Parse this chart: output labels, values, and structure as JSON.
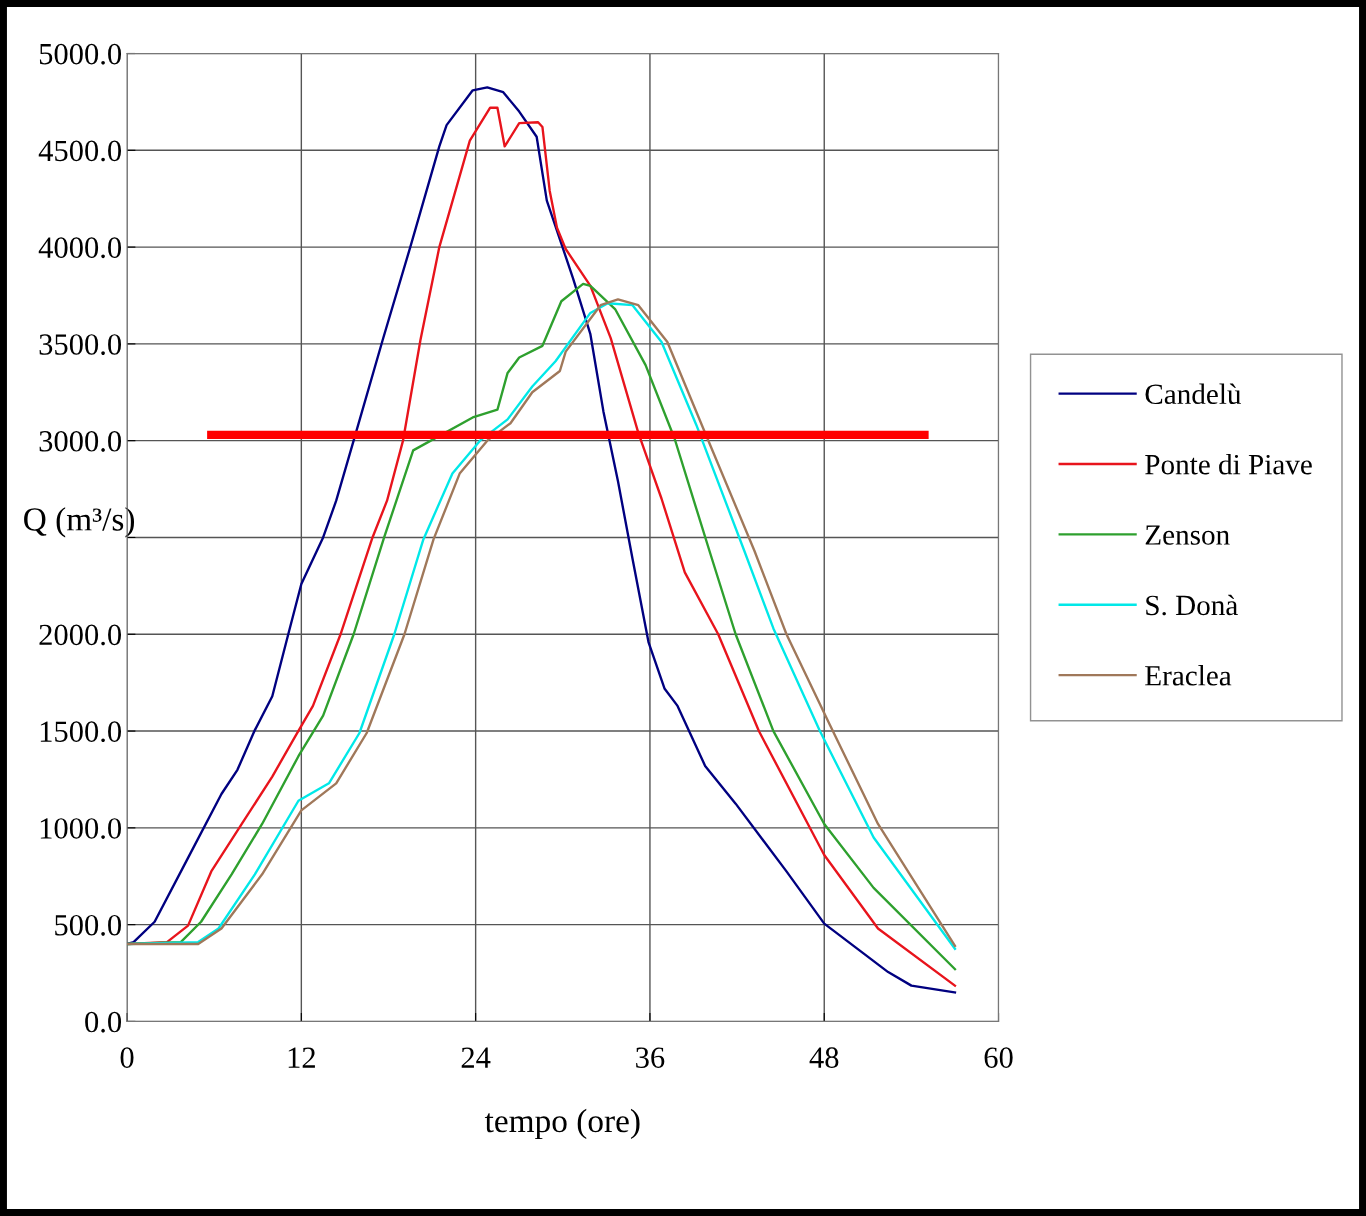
{
  "chart_data": {
    "type": "line",
    "xlabel": "tempo (ore)",
    "ylabel": "Q (m³/s)",
    "xlim": [
      0,
      60
    ],
    "xticks": [
      0,
      12,
      24,
      36,
      48,
      60
    ],
    "ylim": [
      0,
      5000
    ],
    "yticks": [
      {
        "value": 0,
        "label": "0.0"
      },
      {
        "value": 500,
        "label": "500.0"
      },
      {
        "value": 1000,
        "label": "1000.0"
      },
      {
        "value": 1500,
        "label": "1500.0"
      },
      {
        "value": 2000,
        "label": "2000.0"
      },
      {
        "value": 2500,
        "label": null
      },
      {
        "value": 3000,
        "label": "3000.0"
      },
      {
        "value": 3500,
        "label": "3500.0"
      },
      {
        "value": 4000,
        "label": "4000.0"
      },
      {
        "value": 4500,
        "label": "4500.0"
      },
      {
        "value": 5000,
        "label": "5000.0"
      }
    ],
    "grid": true,
    "legend": "right",
    "marker": "none",
    "line_style": "solid",
    "series": [
      {
        "name": "Candelù",
        "color": "#000080",
        "x": [
          0,
          0.45,
          1.9,
          4.2,
          6.5,
          7.6,
          8.8,
          10,
          11.1,
          12,
          13.5,
          14.4,
          15.6,
          17.6,
          19.5,
          21.5,
          22,
          23.8,
          24.8,
          25.9,
          27,
          28.2,
          28.9,
          30.7,
          31.9,
          32.8,
          33.8,
          34.8,
          35.9,
          37,
          37.9,
          39.8,
          41.9,
          45.4,
          48,
          52.4,
          54,
          57
        ],
        "values": [
          400,
          410,
          515,
          845,
          1175,
          1300,
          1505,
          1680,
          2000,
          2260,
          2500,
          2690,
          3000,
          3520,
          4000,
          4520,
          4630,
          4810,
          4825,
          4800,
          4700,
          4570,
          4240,
          3840,
          3550,
          3150,
          2790,
          2390,
          1960,
          1720,
          1630,
          1320,
          1125,
          775,
          505,
          255,
          185,
          150
        ]
      },
      {
        "name": "Ponte di Piave",
        "color": "#e8141c",
        "x": [
          0,
          2.75,
          4.2,
          5.8,
          7.9,
          10,
          11.6,
          12.8,
          14.7,
          16.9,
          17.9,
          19,
          20.2,
          21.5,
          23.6,
          25,
          25.5,
          26,
          27,
          28.3,
          28.6,
          29.1,
          29.6,
          30.2,
          31.9,
          33.3,
          35.2,
          36.8,
          38.4,
          40.7,
          43.5,
          48,
          51.7,
          57
        ],
        "values": [
          400,
          410,
          495,
          775,
          1020,
          1265,
          1475,
          1630,
          2000,
          2500,
          2690,
          3000,
          3520,
          4000,
          4550,
          4720,
          4720,
          4520,
          4640,
          4645,
          4620,
          4290,
          4100,
          3990,
          3800,
          3530,
          3040,
          2700,
          2320,
          2000,
          1500,
          860,
          480,
          185
        ]
      },
      {
        "name": "Zenson",
        "color": "#2ea02e",
        "x": [
          0,
          3.7,
          5.1,
          7.2,
          9.3,
          11.8,
          13.5,
          15.6,
          17.7,
          19.7,
          23.8,
          25.5,
          26.2,
          27,
          28.6,
          29.9,
          31.4,
          31.9,
          33.6,
          35.7,
          37.7,
          40.1,
          41.9,
          44.5,
          48,
          51.4,
          57
        ],
        "values": [
          400,
          410,
          515,
          760,
          1020,
          1370,
          1580,
          2000,
          2500,
          2950,
          3120,
          3160,
          3350,
          3430,
          3490,
          3720,
          3810,
          3800,
          3680,
          3390,
          3010,
          2430,
          2000,
          1500,
          1020,
          690,
          270
        ]
      },
      {
        "name": "S. Donà",
        "color": "#00e8e8",
        "x": [
          0,
          4.9,
          6.3,
          8.8,
          11.8,
          13.9,
          16,
          18.4,
          20.4,
          22.4,
          24.3,
          26.2,
          27.9,
          29.5,
          31.9,
          33.1,
          34.8,
          36.8,
          39.2,
          42.5,
          44.5,
          47.7,
          51.4,
          57
        ],
        "values": [
          400,
          410,
          480,
          760,
          1140,
          1230,
          1490,
          2000,
          2490,
          2830,
          3000,
          3110,
          3280,
          3410,
          3660,
          3710,
          3700,
          3510,
          3080,
          2430,
          2030,
          1500,
          950,
          375
        ]
      },
      {
        "name": "Eraclea",
        "color": "#a0785a",
        "x": [
          0,
          4.9,
          6.5,
          9.3,
          12,
          14.4,
          16.5,
          19.1,
          21.1,
          22.9,
          24.8,
          26.4,
          27.9,
          29.8,
          30.2,
          32.6,
          33.8,
          35.2,
          37.2,
          39.8,
          43.2,
          45.4,
          48.4,
          51.7,
          57
        ],
        "values": [
          400,
          400,
          480,
          760,
          1090,
          1230,
          1490,
          2000,
          2490,
          2830,
          3000,
          3090,
          3250,
          3360,
          3460,
          3700,
          3730,
          3700,
          3510,
          3040,
          2430,
          2000,
          1530,
          1020,
          390
        ]
      },
      {
        "color": "#ff0000",
        "x": [
          5.8,
          54.9
        ],
        "values": [
          3030,
          3030
        ]
      }
    ]
  }
}
